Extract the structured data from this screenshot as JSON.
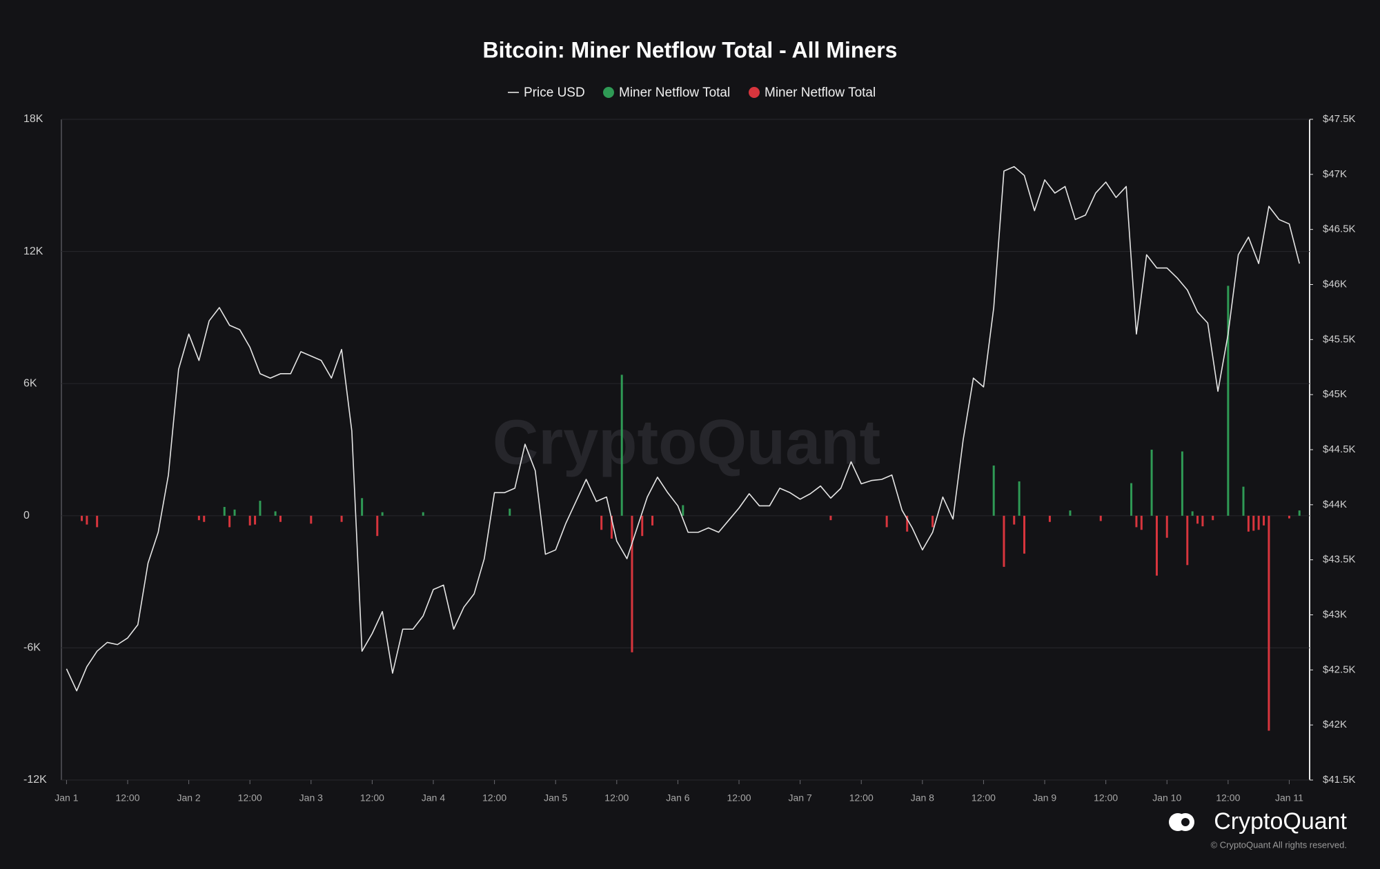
{
  "chart_data": {
    "type": "combo",
    "title": "Bitcoin: Miner Netflow Total - All Miners",
    "watermark": "CryptoQuant",
    "logo_text": "CryptoQuant",
    "copyright": "© CryptoQuant All rights reserved.",
    "x": [
      0,
      2,
      4,
      6,
      8,
      10,
      12,
      14,
      16,
      18,
      20,
      22,
      24,
      26,
      28,
      30,
      32,
      34,
      36,
      38,
      40,
      42,
      44,
      46,
      48,
      50,
      52,
      54,
      56,
      58,
      60,
      62,
      64,
      66,
      68,
      70,
      72,
      74,
      76,
      78,
      80,
      82,
      84,
      86,
      88,
      90,
      92,
      94,
      96,
      98,
      100,
      102,
      104,
      106,
      108,
      110,
      112,
      114,
      116,
      118,
      120,
      122,
      124,
      126,
      128,
      130,
      132,
      134,
      136,
      138,
      140,
      142,
      144,
      146,
      148,
      150,
      152,
      154,
      156,
      158,
      160,
      162,
      164,
      166,
      168,
      170,
      172,
      174,
      176,
      178,
      180,
      182,
      184,
      186,
      188,
      190,
      192,
      194,
      196,
      198,
      200,
      202,
      204,
      206,
      208,
      210,
      212,
      214,
      216,
      218,
      220,
      222,
      224,
      226,
      228,
      230,
      232,
      234,
      236,
      238,
      240,
      242
    ],
    "xlim": [
      -1,
      244
    ],
    "xticks": [
      {
        "value": 0,
        "label": "Jan 1"
      },
      {
        "value": 12,
        "label": "12:00"
      },
      {
        "value": 24,
        "label": "Jan 2"
      },
      {
        "value": 36,
        "label": "12:00"
      },
      {
        "value": 48,
        "label": "Jan 3"
      },
      {
        "value": 60,
        "label": "12:00"
      },
      {
        "value": 72,
        "label": "Jan 4"
      },
      {
        "value": 84,
        "label": "12:00"
      },
      {
        "value": 96,
        "label": "Jan 5"
      },
      {
        "value": 108,
        "label": "12:00"
      },
      {
        "value": 120,
        "label": "Jan 6"
      },
      {
        "value": 132,
        "label": "12:00"
      },
      {
        "value": 144,
        "label": "Jan 7"
      },
      {
        "value": 156,
        "label": "12:00"
      },
      {
        "value": 168,
        "label": "Jan 8"
      },
      {
        "value": 180,
        "label": "12:00"
      },
      {
        "value": 192,
        "label": "Jan 9"
      },
      {
        "value": 204,
        "label": "12:00"
      },
      {
        "value": 216,
        "label": "Jan 10"
      },
      {
        "value": 228,
        "label": "12:00"
      },
      {
        "value": 240,
        "label": "Jan 11"
      }
    ],
    "ylim": [
      -12000,
      18000
    ],
    "yticks": [
      {
        "value": -12000,
        "label": "-12K"
      },
      {
        "value": -6000,
        "label": "-6K"
      },
      0,
      {
        "value": 6000,
        "label": "6K"
      },
      {
        "value": 12000,
        "label": "12K"
      },
      {
        "value": 18000,
        "label": "18K"
      }
    ],
    "y2lim": [
      41500,
      47500
    ],
    "y2ticks": [
      {
        "value": 41500,
        "label": "$41.5K"
      },
      {
        "value": 42000,
        "label": "$42K"
      },
      {
        "value": 42500,
        "label": "$42.5K"
      },
      {
        "value": 43000,
        "label": "$43K"
      },
      {
        "value": 43500,
        "label": "$43.5K"
      },
      {
        "value": 44000,
        "label": "$44K"
      },
      {
        "value": 44500,
        "label": "$44.5K"
      },
      {
        "value": 45000,
        "label": "$45K"
      },
      {
        "value": 45500,
        "label": "$45.5K"
      },
      {
        "value": 46000,
        "label": "$46K"
      },
      {
        "value": 46500,
        "label": "$46.5K"
      },
      {
        "value": 47000,
        "label": "$47K"
      },
      {
        "value": 47500,
        "label": "$47.5K"
      }
    ],
    "grid": true,
    "legend": "top",
    "series": [
      {
        "name": "Price USD",
        "type": "line",
        "axis": "y2",
        "color": "#e6e6e6",
        "values": [
          42510,
          42310,
          42530,
          42670,
          42750,
          42730,
          42790,
          42910,
          43470,
          43750,
          44270,
          45230,
          45550,
          45310,
          45670,
          45790,
          45630,
          45590,
          45430,
          45190,
          45150,
          45190,
          45190,
          45390,
          45350,
          45310,
          45150,
          45410,
          44670,
          42670,
          42830,
          43030,
          42470,
          42870,
          42870,
          42990,
          43230,
          43270,
          42870,
          43070,
          43190,
          43510,
          44110,
          44110,
          44150,
          44550,
          44310,
          43550,
          43590,
          43830,
          44030,
          44230,
          44030,
          44070,
          43670,
          43510,
          43790,
          44070,
          44250,
          44110,
          43990,
          43750,
          43750,
          43790,
          43750,
          43860,
          43970,
          44100,
          43990,
          43990,
          44150,
          44110,
          44050,
          44100,
          44170,
          44060,
          44150,
          44390,
          44190,
          44220,
          44230,
          44270,
          43950,
          43790,
          43590,
          43750,
          44070,
          43870,
          44590,
          45150,
          45070,
          45790,
          47030,
          47070,
          46990,
          46670,
          46950,
          46830,
          46890,
          46590,
          46630,
          46830,
          46930,
          46790,
          46890,
          45550,
          46270,
          46150,
          46150,
          46060,
          45950,
          45750,
          45650,
          45030,
          45550,
          46270,
          46430,
          46190,
          46710,
          46590,
          46550,
          46190
        ]
      },
      {
        "name": "Miner Netflow Total",
        "type": "bar",
        "color": "#2f9a55",
        "x": [
          31,
          33,
          38,
          41,
          58,
          62,
          70,
          87,
          109,
          121,
          182,
          187,
          197,
          209,
          213,
          219,
          221,
          228,
          231,
          242
        ],
        "values": [
          400,
          280,
          680,
          200,
          800,
          160,
          160,
          320,
          6400,
          480,
          2280,
          1560,
          240,
          1480,
          3000,
          2920,
          200,
          10440,
          1320,
          240
        ]
      },
      {
        "name": "Miner Netflow Total",
        "type": "bar",
        "color": "#d8353d",
        "x": [
          3,
          4,
          6,
          26,
          27,
          32,
          36,
          37,
          42,
          48,
          54,
          61,
          105,
          107,
          111,
          113,
          115,
          150,
          161,
          165,
          170,
          184,
          186,
          188,
          193,
          203,
          210,
          211,
          214,
          216,
          220,
          222,
          223,
          225,
          232,
          233,
          234,
          235,
          236,
          240
        ],
        "values": [
          -240,
          -400,
          -520,
          -200,
          -280,
          -520,
          -440,
          -400,
          -280,
          -360,
          -280,
          -920,
          -640,
          -1040,
          -6200,
          -920,
          -440,
          -200,
          -520,
          -720,
          -520,
          -2320,
          -400,
          -1720,
          -280,
          -240,
          -520,
          -640,
          -2720,
          -1000,
          -2240,
          -360,
          -480,
          -200,
          -720,
          -680,
          -640,
          -440,
          -9760,
          -120
        ]
      }
    ]
  }
}
